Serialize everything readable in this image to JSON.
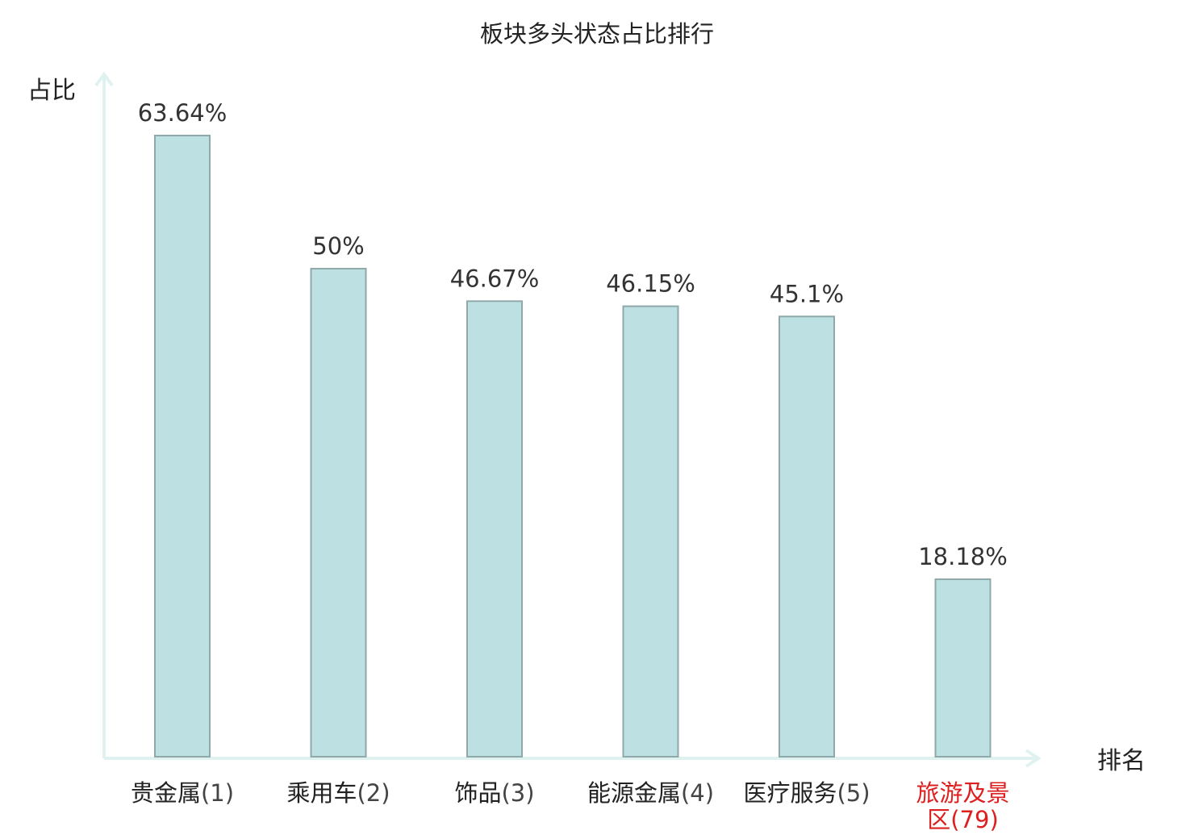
{
  "chart_data": {
    "type": "bar",
    "title": "板块多头状态占比排行",
    "ylabel": "占比",
    "xlabel": "排名",
    "ylim": [
      0,
      70
    ],
    "categories": [
      {
        "name": "贵金属",
        "rank": "(1)",
        "highlight": false
      },
      {
        "name": "乘用车",
        "rank": "(2)",
        "highlight": false
      },
      {
        "name": "饰品",
        "rank": "(3)",
        "highlight": false
      },
      {
        "name": "能源金属",
        "rank": "(4)",
        "highlight": false
      },
      {
        "name": "医疗服务",
        "rank": "(5)",
        "highlight": false
      },
      {
        "name": "旅游及景区",
        "rank": "(79)",
        "highlight": true
      }
    ],
    "values": [
      63.64,
      50,
      46.67,
      46.15,
      45.1,
      18.18
    ],
    "value_labels": [
      "63.64%",
      "50%",
      "46.67%",
      "46.15%",
      "45.1%",
      "18.18%"
    ],
    "colors": {
      "bar_fill": "#bde0e2",
      "bar_stroke": "#8fa9ab",
      "axis": "#e0f2f0",
      "highlight_text": "#dd1f1f",
      "rank_text": "#444444",
      "value_text": "#333333"
    }
  }
}
